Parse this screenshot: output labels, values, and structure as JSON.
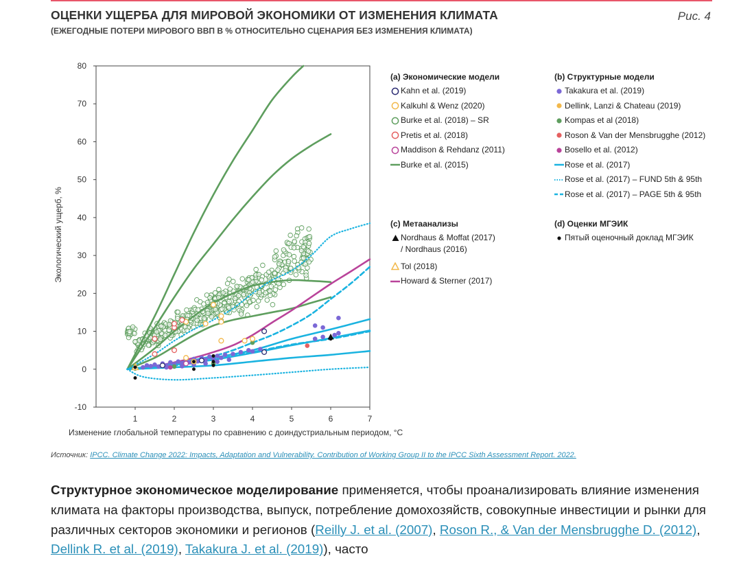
{
  "header": {
    "title": "ОЦЕНКИ УЩЕРБА ДЛЯ МИРОВОЙ ЭКОНОМИКИ ОТ ИЗМЕНЕНИЯ КЛИМАТА",
    "subtitle": "(ЕЖЕГОДНЫЕ ПОТЕРИ МИРОВОГО ВВП В % ОТНОСИТЕЛЬНО СЦЕНАРИЯ БЕЗ ИЗМЕНЕНИЯ КЛИМАТА)",
    "figure_label": "Рис. 4"
  },
  "chart_data": {
    "type": "scatter",
    "ylabel": "Экологический ущерб, %",
    "xlabel": "Изменение глобальной температуры по сравнению с доиндустриальным периодом, °C",
    "xlim": [
      0,
      7
    ],
    "ylim": [
      -10,
      80
    ],
    "x_ticks": [
      1,
      2,
      3,
      4,
      5,
      6,
      7
    ],
    "y_ticks": [
      -10,
      0,
      10,
      20,
      30,
      40,
      50,
      60,
      70,
      80
    ],
    "grid": false,
    "colors": {
      "green": "#5e9e5e",
      "cyan": "#1ab3e0",
      "magenta": "#b9439a",
      "purple": "#7b68d6",
      "orange": "#f2b84b",
      "red": "#e56060",
      "navy": "#2b2b72",
      "black": "#111111"
    },
    "lines": [
      {
        "name": "Burke et al. (2015)",
        "style": "solid",
        "color": "green",
        "points": [
          [
            0.8,
            0
          ],
          [
            1.5,
            14
          ],
          [
            2,
            25
          ],
          [
            2.5,
            36
          ],
          [
            3,
            46
          ],
          [
            3.5,
            55
          ],
          [
            4,
            63
          ],
          [
            4.5,
            71
          ],
          [
            5,
            77
          ],
          [
            5.3,
            80
          ]
        ]
      },
      {
        "name": "Burke et al. (2015)",
        "style": "solid",
        "color": "green",
        "points": [
          [
            0.8,
            0
          ],
          [
            1.5,
            11
          ],
          [
            2,
            19
          ],
          [
            2.5,
            26.5
          ],
          [
            3,
            33
          ],
          [
            3.5,
            39.5
          ],
          [
            4,
            45.5
          ],
          [
            4.5,
            51
          ],
          [
            5,
            55.5
          ],
          [
            5.5,
            59
          ],
          [
            6,
            62
          ]
        ]
      },
      {
        "name": "Burke et al. (2015)",
        "style": "solid",
        "color": "green",
        "points": [
          [
            0.8,
            0
          ],
          [
            1.5,
            5.5
          ],
          [
            2,
            10
          ],
          [
            2.5,
            14
          ],
          [
            3,
            17.5
          ],
          [
            3.5,
            20
          ],
          [
            4,
            22
          ],
          [
            4.5,
            23
          ],
          [
            5,
            23.5
          ],
          [
            5.5,
            23.3
          ],
          [
            6,
            23
          ]
        ]
      },
      {
        "name": "Burke et al. (2015)",
        "style": "solid",
        "color": "green",
        "points": [
          [
            0.8,
            0
          ],
          [
            1.5,
            3
          ],
          [
            2,
            6
          ],
          [
            2.5,
            9
          ],
          [
            3,
            11.5
          ],
          [
            3.5,
            13
          ],
          [
            4,
            14
          ],
          [
            4.5,
            15
          ],
          [
            5,
            16
          ],
          [
            5.5,
            17.5
          ],
          [
            6,
            19
          ]
        ]
      },
      {
        "name": "Howard & Sterner (2017)",
        "style": "solid",
        "color": "magenta",
        "points": [
          [
            0.8,
            0
          ],
          [
            1.5,
            0.8
          ],
          [
            2,
            1.8
          ],
          [
            2.5,
            3
          ],
          [
            3,
            4.5
          ],
          [
            3.5,
            6.3
          ],
          [
            4,
            9
          ],
          [
            4.5,
            12.3
          ],
          [
            5,
            15.5
          ],
          [
            5.5,
            19
          ],
          [
            6,
            22.5
          ],
          [
            6.5,
            25.7
          ],
          [
            7,
            29
          ]
        ]
      },
      {
        "name": "Rose et al. (2017)",
        "style": "solid",
        "color": "cyan",
        "points": [
          [
            0.8,
            0
          ],
          [
            2,
            1.5
          ],
          [
            3,
            3
          ],
          [
            4,
            5
          ],
          [
            5,
            8
          ],
          [
            6,
            10.5
          ],
          [
            7,
            13.2
          ]
        ]
      },
      {
        "name": "Rose et al. (2017)",
        "style": "solid",
        "color": "cyan",
        "points": [
          [
            0.8,
            0
          ],
          [
            2,
            1.2
          ],
          [
            3,
            2.5
          ],
          [
            4,
            4.3
          ],
          [
            5,
            6.3
          ],
          [
            6,
            8.2
          ],
          [
            7,
            10.2
          ]
        ]
      },
      {
        "name": "Rose et al. (2017)",
        "style": "solid",
        "color": "cyan",
        "points": [
          [
            0.8,
            0
          ],
          [
            2,
            0.5
          ],
          [
            3,
            1
          ],
          [
            4,
            2
          ],
          [
            5,
            3
          ],
          [
            6,
            3.8
          ],
          [
            7,
            4.8
          ]
        ]
      },
      {
        "name": "Rose et al. (2017) – FUND 5th & 95th",
        "style": "dotted",
        "color": "cyan",
        "points": [
          [
            0.8,
            0
          ],
          [
            1.5,
            4
          ],
          [
            2,
            7.5
          ],
          [
            2.5,
            10.5
          ],
          [
            3,
            13
          ],
          [
            3.5,
            16
          ],
          [
            4,
            20
          ],
          [
            4.5,
            23.5
          ],
          [
            5,
            26
          ],
          [
            5.5,
            30
          ],
          [
            6,
            35
          ],
          [
            6.5,
            37
          ],
          [
            7,
            38.5
          ]
        ]
      },
      {
        "name": "Rose et al. (2017) – FUND 5th & 95th",
        "style": "dotted",
        "color": "cyan",
        "points": [
          [
            0.8,
            0
          ],
          [
            1.2,
            -2
          ],
          [
            2,
            -2.8
          ],
          [
            3,
            -2.3
          ],
          [
            4,
            -1.6
          ],
          [
            5,
            -0.8
          ],
          [
            6,
            0
          ],
          [
            7,
            0.5
          ]
        ]
      },
      {
        "name": "Rose et al. (2017) – PAGE 5th & 95th",
        "style": "dashed",
        "color": "cyan",
        "points": [
          [
            0.8,
            0
          ],
          [
            2,
            1.5
          ],
          [
            3,
            3.5
          ],
          [
            3.5,
            5
          ],
          [
            4,
            7
          ],
          [
            4.5,
            9
          ],
          [
            5,
            11.5
          ],
          [
            5.5,
            14.5
          ],
          [
            6,
            18.5
          ],
          [
            6.5,
            22.5
          ],
          [
            7,
            27
          ]
        ]
      },
      {
        "name": "Rose et al. (2017) – PAGE 5th & 95th",
        "style": "dashed",
        "color": "cyan",
        "points": [
          [
            0.8,
            0
          ],
          [
            2,
            1
          ],
          [
            3,
            2.5
          ],
          [
            4,
            4.5
          ],
          [
            5,
            6.5
          ],
          [
            6,
            8
          ],
          [
            7,
            10
          ]
        ]
      }
    ],
    "scatter": {
      "Burke et al. (2018) – SR": {
        "color": "green",
        "marker": "open-circle"
      },
      "Takakura et al. (2019)": {
        "color": "purple",
        "marker": "filled-circle",
        "points": [
          [
            1.2,
            0.5
          ],
          [
            1.3,
            1
          ],
          [
            1.4,
            0.8
          ],
          [
            1.5,
            1.2
          ],
          [
            1.6,
            0.7
          ],
          [
            1.7,
            1.5
          ],
          [
            1.8,
            1
          ],
          [
            1.9,
            1.8
          ],
          [
            2,
            1.3
          ],
          [
            2.1,
            2
          ],
          [
            2.2,
            1.6
          ],
          [
            2.3,
            2.4
          ],
          [
            2.4,
            1.8
          ],
          [
            2.5,
            2.7
          ],
          [
            2.6,
            2.1
          ],
          [
            2.7,
            3
          ],
          [
            2.8,
            2.5
          ],
          [
            2.9,
            3.3
          ],
          [
            3,
            2.7
          ],
          [
            3.1,
            3.5
          ],
          [
            3.2,
            3
          ],
          [
            3.3,
            3.8
          ],
          [
            3.5,
            4
          ],
          [
            3.7,
            4.5
          ],
          [
            3.9,
            5
          ],
          [
            4,
            4.7
          ],
          [
            4.2,
            5.3
          ],
          [
            5.6,
            8
          ],
          [
            5.8,
            8.5
          ],
          [
            6.1,
            9
          ],
          [
            6.2,
            9.5
          ],
          [
            5.6,
            11.5
          ],
          [
            5.8,
            11
          ],
          [
            6.2,
            13.5
          ],
          [
            3.1,
            2
          ],
          [
            2.5,
            1.2
          ],
          [
            1.8,
            0.5
          ],
          [
            2.2,
            0.8
          ],
          [
            2.8,
            1.5
          ],
          [
            3.4,
            2.5
          ]
        ]
      },
      "Dellink, Lanzi & Chateau (2019)": {
        "color": "orange",
        "marker": "filled-circle",
        "points": [
          [
            2.5,
            2
          ]
        ]
      },
      "Kompas et al (2018)": {
        "color": "green",
        "marker": "filled-circle",
        "points": [
          [
            1,
            0.2
          ],
          [
            2,
            0.7
          ],
          [
            3,
            1.5
          ],
          [
            4,
            7
          ]
        ]
      },
      "Roson & Van der Mensbrugghe (2012)": {
        "color": "red",
        "marker": "filled-circle",
        "points": [
          [
            5.4,
            6.2
          ]
        ]
      },
      "Bosello et al. (2012)": {
        "color": "magenta",
        "marker": "filled-circle",
        "points": [
          [
            1.9,
            0.5
          ]
        ]
      },
      "Kahn et al. (2019)": {
        "color": "navy",
        "marker": "open-circle",
        "points": [
          [
            1.7,
            1
          ],
          [
            2.7,
            2.3
          ],
          [
            4.3,
            4.5
          ],
          [
            4.3,
            10
          ]
        ]
      },
      "Kalkuhl & Wenz (2020)": {
        "color": "orange",
        "marker": "open-circle",
        "points": [
          [
            2.3,
            3
          ],
          [
            2.5,
            2
          ],
          [
            3.2,
            7.5
          ],
          [
            3.2,
            14
          ],
          [
            2.8,
            12
          ],
          [
            3,
            17
          ],
          [
            3.8,
            7.5
          ],
          [
            2.3,
            12.5
          ],
          [
            3.2,
            12.5
          ],
          [
            4,
            8
          ]
        ]
      },
      "Pretis et al. (2018)": {
        "color": "red",
        "marker": "open-circle",
        "points": [
          [
            1.5,
            8
          ],
          [
            2,
            5
          ],
          [
            2,
            11
          ],
          [
            2,
            12
          ],
          [
            1.5,
            4
          ],
          [
            2.2,
            13
          ]
        ]
      },
      "Maddison & Rehdanz (2011)": {
        "color": "magenta",
        "marker": "open-circle",
        "points": [
          [
            2.3,
            1.5
          ]
        ]
      },
      "Nordhaus & Moffat (2017) / Nordhaus (2016)": {
        "color": "black",
        "marker": "triangle",
        "points": [
          [
            6,
            8.5
          ]
        ]
      },
      "Tol (2018)": {
        "color": "orange",
        "marker": "open-triangle",
        "points": [
          [
            1,
            0.5
          ]
        ]
      },
      "Пятый оценочный доклад МГЭИК": {
        "color": "black",
        "marker": "small-dot",
        "points": [
          [
            1,
            -2.3
          ],
          [
            1,
            0.5
          ],
          [
            2.5,
            0
          ],
          [
            3,
            1
          ],
          [
            3,
            2
          ],
          [
            3,
            3.5
          ],
          [
            2.5,
            2
          ],
          [
            6,
            8
          ]
        ]
      }
    }
  },
  "legend": {
    "a": {
      "head": "(a) Экономические модели",
      "items": [
        "Kahn et al. (2019)",
        "Kalkuhl & Wenz (2020)",
        "Burke et al. (2018) – SR",
        "Pretis et al. (2018)",
        "Maddison & Rehdanz (2011)",
        "Burke et al. (2015)"
      ]
    },
    "b": {
      "head": "(b) Структурные модели",
      "items": [
        "Takakura et al. (2019)",
        "Dellink, Lanzi & Chateau (2019)",
        "Kompas et al (2018)",
        "Roson & Van der Mensbrugghe (2012)",
        "Bosello et al. (2012)",
        "Rose et al. (2017)",
        "Rose et al. (2017) – FUND 5th & 95th",
        "Rose et al. (2017) – PAGE 5th & 95th"
      ]
    },
    "c": {
      "head": "(c) Метаанализы",
      "items": [
        "Nordhaus & Moffat (2017)",
        "/ Nordhaus (2016)",
        "Tol (2018)",
        "Howard & Sterner (2017)"
      ]
    },
    "d": {
      "head": "(d) Оценки МГЭИК",
      "items": [
        "Пятый оценочный доклад МГЭИК"
      ]
    }
  },
  "source": {
    "label": "Источник:",
    "link": "IPCC. Climate Change 2022: Impacts, Adaptation and Vulnerability. Contribution of Working Group II to the IPCC Sixth Assessment Report. 2022."
  },
  "paragraph": {
    "bold": "Структурное экономическое моделирование",
    "text1": " применяется, чтобы проанализировать влияние изменения климата на факторы производства, выпуск, потребление домохозяйств, совокупные инвестиции и рынки для различных секторов экономики и регионов (",
    "link1": "Reilly J. et al. (2007)",
    "sep1": ", ",
    "link2": "Roson R., & Van der Mensbrugghe D. (2012)",
    "sep2": ", ",
    "link3": "Dellink R. et al. (2019)",
    "sep3": ", ",
    "link4": "Takakura J. et al. (2019)",
    "text2": "), часто"
  }
}
